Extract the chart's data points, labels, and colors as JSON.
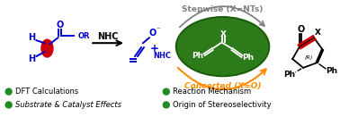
{
  "bg_color": "#ffffff",
  "stepwise_label": "Stepwise (X=NTs)",
  "concerted_label": "Concerted (X=O)",
  "stepwise_color": "#808080",
  "orange_color": "#FF8C00",
  "ellipse_face": "#2d7a1a",
  "bullet_color": "#228B22",
  "bullet_items_left": [
    "DFT Calculations",
    "Substrate & Catalyst Effects"
  ],
  "bullet_items_right": [
    "Reaction Mechanism",
    "Origin of Stereoselectivity"
  ],
  "blue": "#0000CC",
  "red": "#CC0000",
  "black": "#000000",
  "white": "#FFFFFF",
  "green": "#228B22"
}
